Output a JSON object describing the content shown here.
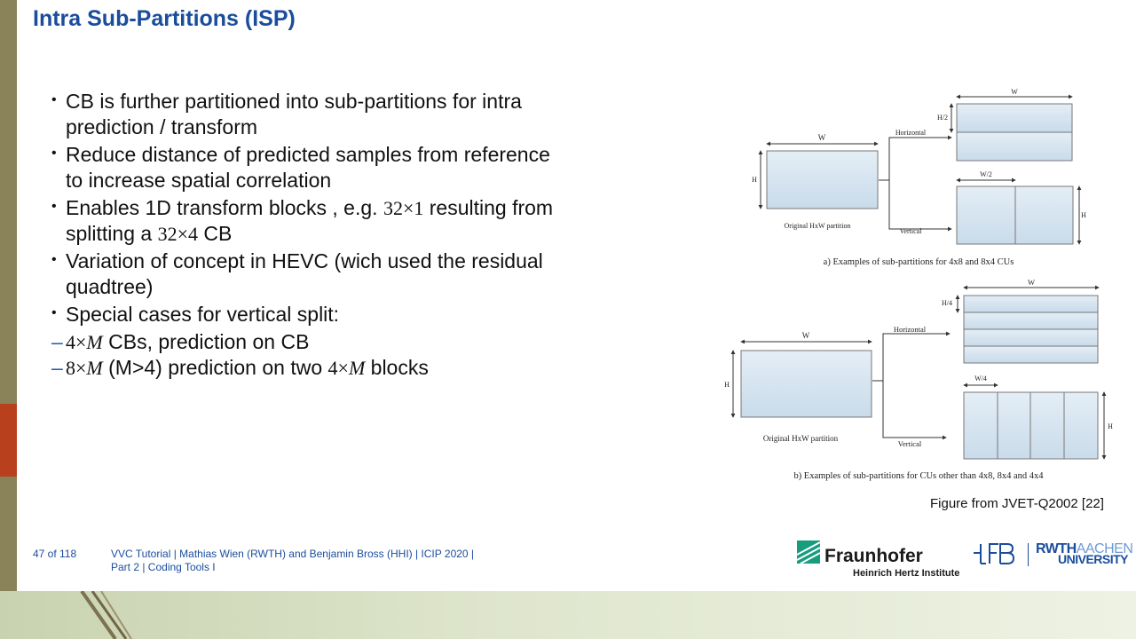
{
  "slide": {
    "title": "Intra Sub-Partitions (ISP)"
  },
  "bullets": [
    {
      "text": "CB is further partitioned into sub-partitions for intra prediction / transform"
    },
    {
      "text": "Reduce distance of predicted samples from reference to increase spatial correlation"
    },
    {
      "pre": "Enables 1D transform blocks , e.g. ",
      "m1": "32×1",
      "mid": " resulting from splitting a ",
      "m2": "32×4",
      "post": " CB"
    },
    {
      "text": "Variation of concept in HEVC (wich used the residual quadtree)"
    },
    {
      "text": "Special cases for vertical split:"
    }
  ],
  "subbullets": [
    {
      "dash": "–",
      "m1": "4×",
      "m1v": "M",
      "post": " CBs, prediction on CB"
    },
    {
      "dash": "–",
      "m1": "8×",
      "m1v": "M",
      "mid": " (M>4) prediction on two ",
      "m2": "4×",
      "m2v": "M",
      "post": " blocks"
    }
  ],
  "figure": {
    "a": {
      "w": "W",
      "h": "H",
      "orig": "Original HxW partition",
      "horizontal": "Horizontal",
      "vertical": "Vertical",
      "h2": "H/2",
      "w_top": "W",
      "w2": "W/2",
      "h_right": "H",
      "caption": "a) Examples of sub-partitions for 4x8 and 8x4 CUs"
    },
    "b": {
      "w": "W",
      "h": "H",
      "orig": "Original HxW partition",
      "horizontal": "Horizontal",
      "vertical": "Vertical",
      "h4": "H/4",
      "w_top": "W",
      "w4": "W/4",
      "h_right": "H",
      "caption": "b) Examples of sub-partitions for CUs other than 4x8, 8x4 and 4x4"
    },
    "source": "Figure from JVET-Q2002 [22]"
  },
  "footer": {
    "page": "47 of 118",
    "line1": "VVC Tutorial  |  Mathias Wien (RWTH) and Benjamin Bross (HHI)  |  ICIP 2020  |",
    "line2": "Part 2  |  Coding Tools I"
  },
  "logos": {
    "fraunhofer": "Fraunhofer",
    "hhi": "Heinrich Hertz Institute",
    "rwth": "RWTH",
    "aachen": "AACHEN",
    "university": "UNIVERSITY"
  },
  "colors": {
    "title": "#1a4d9c",
    "sidebar": "#8a8258",
    "accent": "#b8401c",
    "block_fill": "#d5e3ef",
    "fraunhofer_green": "#179c7d"
  }
}
